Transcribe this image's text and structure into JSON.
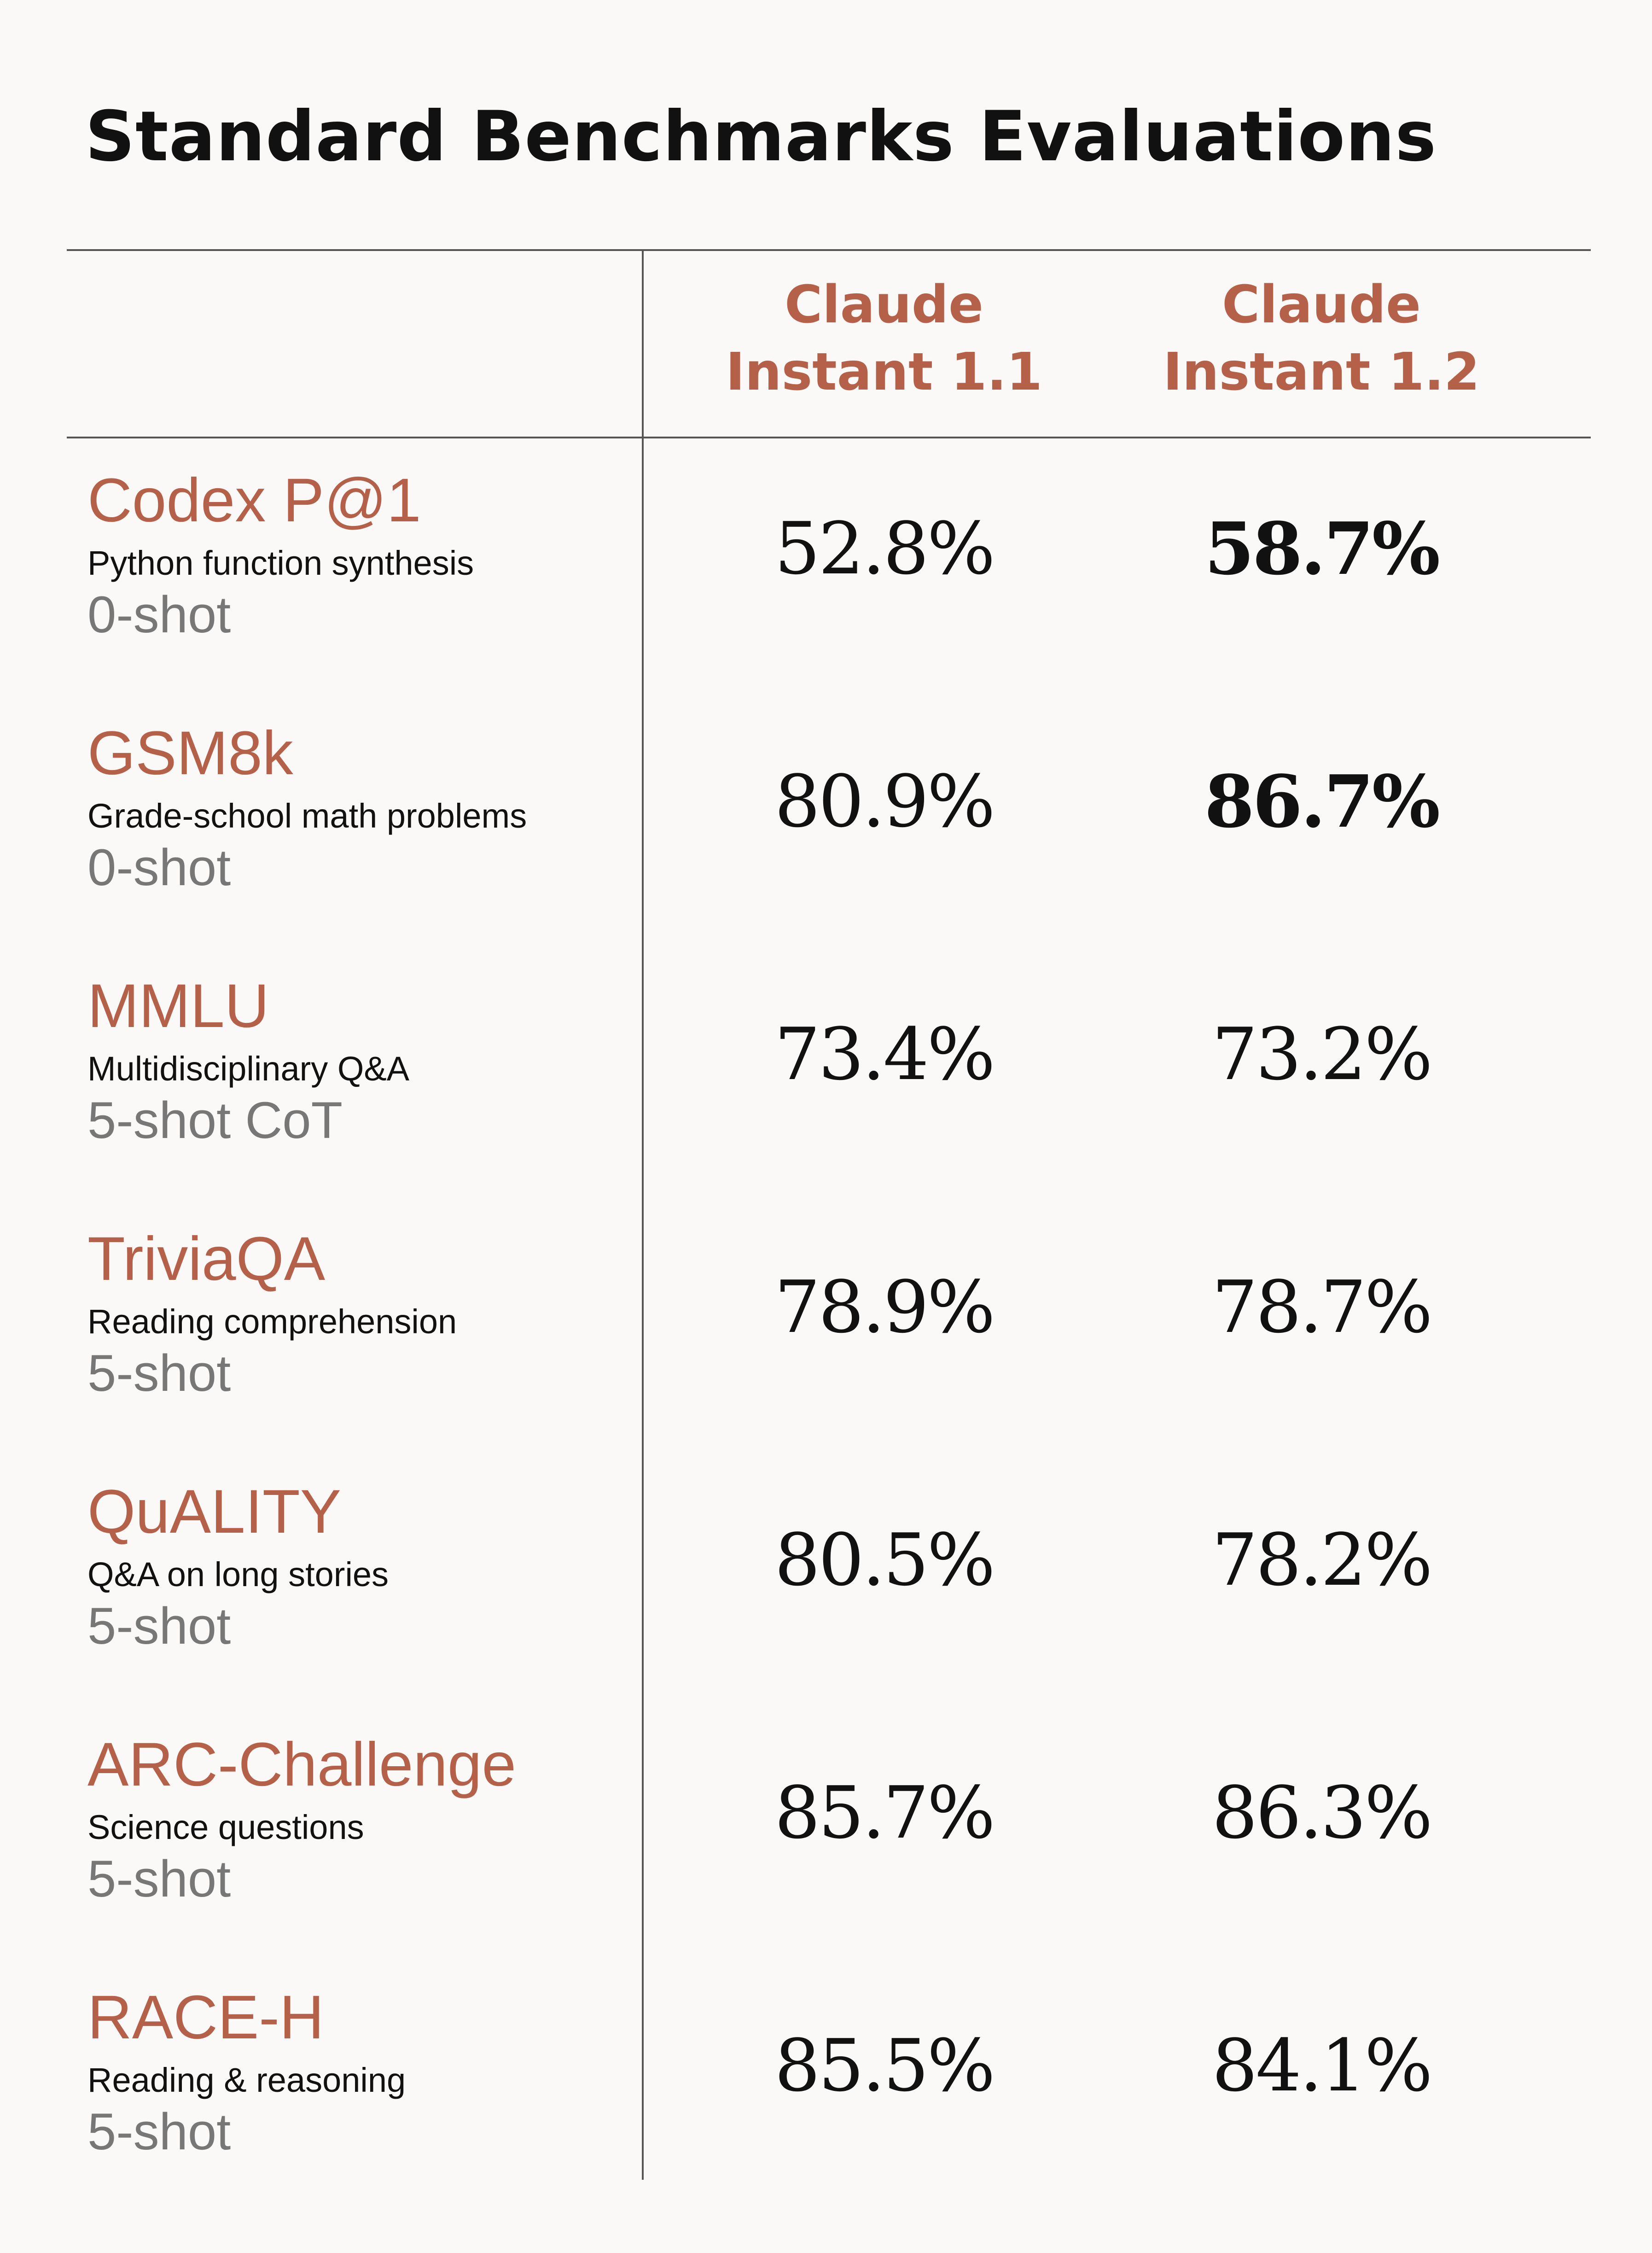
{
  "title": "Standard Benchmarks Evaluations",
  "columns": [
    "Claude Instant 1.1",
    "Claude Instant 1.2"
  ],
  "colors": {
    "accent": "#b5614a",
    "text": "#111111",
    "muted": "#777777",
    "background": "#faf9f7"
  },
  "rows": [
    {
      "name": "Codex P@1",
      "desc": "Python function synthesis",
      "shot": "0-shot",
      "v1": "52.8%",
      "v2": "58.7%",
      "bold": 2
    },
    {
      "name": "GSM8k",
      "desc": "Grade-school math problems",
      "shot": "0-shot",
      "v1": "80.9%",
      "v2": "86.7%",
      "bold": 2
    },
    {
      "name": "MMLU",
      "desc": "Multidisciplinary Q&A",
      "shot": "5-shot CoT",
      "v1": "73.4%",
      "v2": "73.2%",
      "bold": 0
    },
    {
      "name": "TriviaQA",
      "desc": "Reading comprehension",
      "shot": "5-shot",
      "v1": "78.9%",
      "v2": "78.7%",
      "bold": 0
    },
    {
      "name": "QuALITY",
      "desc": "Q&A on long stories",
      "shot": "5-shot",
      "v1": "80.5%",
      "v2": "78.2%",
      "bold": 0
    },
    {
      "name": "ARC-Challenge",
      "desc": "Science questions",
      "shot": "5-shot",
      "v1": "85.7%",
      "v2": "86.3%",
      "bold": 0
    },
    {
      "name": "RACE-H",
      "desc": "Reading & reasoning",
      "shot": "5-shot",
      "v1": "85.5%",
      "v2": "84.1%",
      "bold": 0
    }
  ]
}
